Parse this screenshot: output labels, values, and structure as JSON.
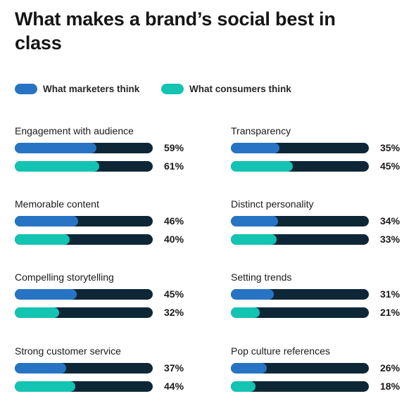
{
  "title": "What makes a brand’s social best in class",
  "colors": {
    "marketers": "#2774c4",
    "consumers": "#12c4b1",
    "track": "#0e2737"
  },
  "legend": [
    {
      "label": "What marketers think",
      "color": "#2774c4"
    },
    {
      "label": "What consumers think",
      "color": "#12c4b1"
    }
  ],
  "chart_data": {
    "type": "bar",
    "orientation": "horizontal",
    "title": "What makes a brand’s social best in class",
    "xlim": [
      0,
      100
    ],
    "series_names": [
      "What marketers think",
      "What consumers think"
    ],
    "categories": [
      {
        "label": "Engagement with audience",
        "marketers": 59,
        "consumers": 61,
        "marketers_text": "59%",
        "consumers_text": "61%"
      },
      {
        "label": "Transparency",
        "marketers": 35,
        "consumers": 45,
        "marketers_text": "35%",
        "consumers_text": "45%"
      },
      {
        "label": "Memorable content",
        "marketers": 46,
        "consumers": 40,
        "marketers_text": "46%",
        "consumers_text": "40%"
      },
      {
        "label": "Distinct personality",
        "marketers": 34,
        "consumers": 33,
        "marketers_text": "34%",
        "consumers_text": "33%"
      },
      {
        "label": "Compelling storytelling",
        "marketers": 45,
        "consumers": 32,
        "marketers_text": "45%",
        "consumers_text": "32%"
      },
      {
        "label": "Setting trends",
        "marketers": 31,
        "consumers": 21,
        "marketers_text": "31%",
        "consumers_text": "21%"
      },
      {
        "label": "Strong customer service",
        "marketers": 37,
        "consumers": 44,
        "marketers_text": "37%",
        "consumers_text": "44%"
      },
      {
        "label": "Pop culture references",
        "marketers": 26,
        "consumers": 18,
        "marketers_text": "26%",
        "consumers_text": "18%"
      }
    ]
  }
}
